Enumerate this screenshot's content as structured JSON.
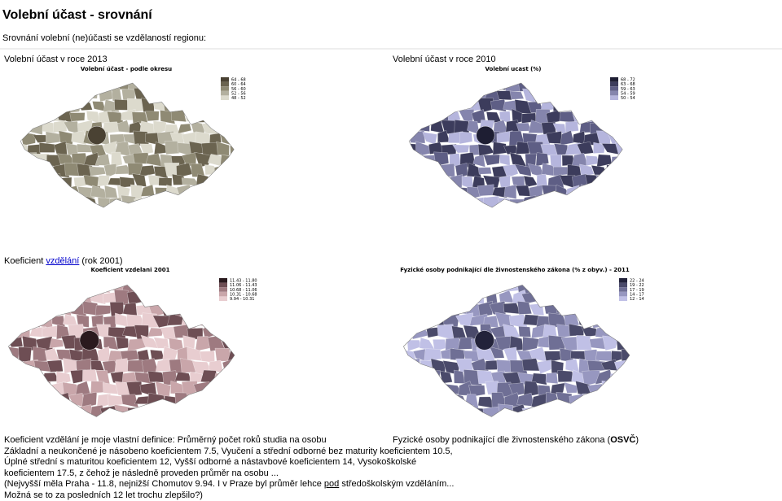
{
  "header": {
    "title": "Volební účast - srovnání",
    "subtitle": "Srovnání volební (ne)účasti se vzdělaností regionu:"
  },
  "panels": [
    {
      "caption": "Volební účast v roce 2013",
      "map_title": "Volební účast - podle okresu",
      "legend": [
        "64 - 68",
        "60 - 64",
        "56 - 60",
        "52 - 56",
        "48 - 52"
      ],
      "colors": [
        "#4a4233",
        "#6b6450",
        "#8f8a74",
        "#b3b09f",
        "#dcdacd"
      ]
    },
    {
      "caption": "Volební účast v roce 2010",
      "map_title": "Volební ucast (%)",
      "legend": [
        "68 - 72",
        "63 - 68",
        "59 - 63",
        "54 - 59",
        "50 - 54"
      ],
      "colors": [
        "#1e1e33",
        "#3c3c5c",
        "#5e5e85",
        "#8585ad",
        "#b5b5dd"
      ]
    },
    {
      "caption_parts": [
        "Koeficient ",
        "vzdělání",
        " (rok 2001)"
      ],
      "map_title": "Koeficient vzdelani 2001",
      "legend": [
        "11.43 - 11.80",
        "11.06 - 11.43",
        "10.68 - 11.06",
        "10.31 - 10.68",
        "9.94 - 10.31"
      ],
      "colors": [
        "#2a1a1e",
        "#6e4e54",
        "#9e7a80",
        "#c9a6aa",
        "#e8cdd0"
      ]
    },
    {
      "map_title": "Fyzické osoby podnikající dle živnostenského zákona (% z obyv.) - 2011",
      "legend": [
        "22 - 24",
        "19 - 22",
        "17 - 19",
        "14 - 17",
        "12 - 14"
      ],
      "colors": [
        "#22223a",
        "#4a4a6a",
        "#6f6f95",
        "#9797c0",
        "#c0c0e6"
      ]
    }
  ],
  "notes": {
    "left": [
      "Koeficient vzdělání je moje vlastní definice: Průměrný počet roků studia na osobu",
      "Základní a neukončené je násobeno koeficientem 7.5, Vyučení a střední odborné bez maturity koeficientem 10.5,",
      "Úplné střední s maturitou koeficientem 12, Vyšší odborné a nástavbové koeficientem 14, Vysokoškolské",
      "koeficientem 17.5, z čehož je následně proveden průměr na osobu ..."
    ],
    "left_parts": [
      "(Nejvyšší měla Praha - 11.8, nejnižší Chomutov 9.94. I v Praze byl průměr lehce ",
      "pod",
      " středoškolským vzděláním..."
    ],
    "left_last": "Možná se to za posledních 12 let trochu zlepšilo?)",
    "right_parts": [
      "Fyzické osoby podnikající dle živnostenského zákona (",
      "OSVČ",
      ")"
    ]
  }
}
